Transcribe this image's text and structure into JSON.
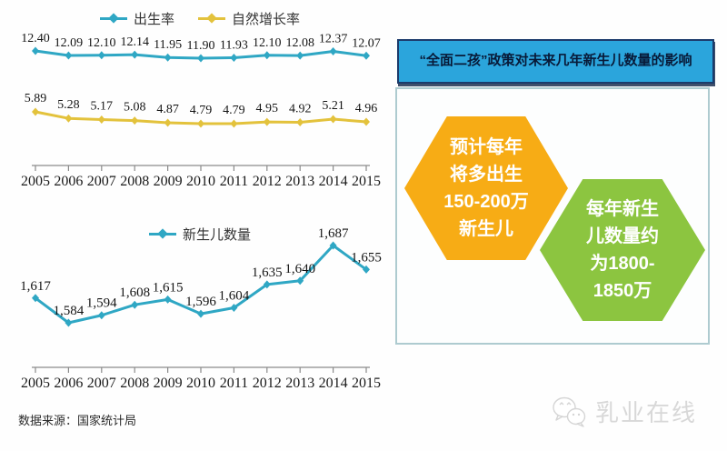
{
  "chart_data": [
    {
      "type": "line",
      "title": "",
      "categories": [
        "2005",
        "2006",
        "2007",
        "2008",
        "2009",
        "2010",
        "2011",
        "2012",
        "2013",
        "2014",
        "2015"
      ],
      "xlabel": "",
      "ylabel": "",
      "legend_position": "top",
      "grid": false,
      "series": [
        {
          "name": "出生率",
          "color": "#2FA7C4",
          "values": [
            12.4,
            12.09,
            12.1,
            12.14,
            11.95,
            11.9,
            11.93,
            12.1,
            12.08,
            12.37,
            12.07
          ],
          "labels": [
            "12.40",
            "12.09",
            "12.10",
            "12.14",
            "11.95",
            "11.90",
            "11.93",
            "12.10",
            "12.08",
            "12.37",
            "12.07"
          ]
        },
        {
          "name": "自然增长率",
          "color": "#E3C23C",
          "values": [
            5.89,
            5.28,
            5.17,
            5.08,
            4.87,
            4.79,
            4.79,
            4.95,
            4.92,
            5.21,
            4.96
          ],
          "labels": [
            "5.89",
            "5.28",
            "5.17",
            "5.08",
            "4.87",
            "4.79",
            "4.79",
            "4.95",
            "4.92",
            "5.21",
            "4.96"
          ]
        }
      ]
    },
    {
      "type": "line",
      "title": "",
      "categories": [
        "2005",
        "2006",
        "2007",
        "2008",
        "2009",
        "2010",
        "2011",
        "2012",
        "2013",
        "2014",
        "2015"
      ],
      "xlabel": "",
      "ylabel": "",
      "legend_position": "top",
      "grid": false,
      "series": [
        {
          "name": "新生儿数量",
          "color": "#2FA7C4",
          "values": [
            1617,
            1584,
            1594,
            1608,
            1615,
            1596,
            1604,
            1635,
            1640,
            1687,
            1655
          ],
          "labels": [
            "1,617",
            "1,584",
            "1,594",
            "1,608",
            "1,615",
            "1,596",
            "1,604",
            "1,635",
            "1,640",
            "1,687",
            "1,655"
          ]
        }
      ]
    }
  ],
  "right_panel": {
    "title": "“全面二孩”政策对未来几年新生儿数量的影响",
    "hex_yellow": "预计每年\n将多出生\n150-200万\n新生儿",
    "hex_green": "每年新生\n儿数量约\n为1800-\n1850万"
  },
  "source": "数据来源：国家统计局",
  "watermark": "乳业在线",
  "colors": {
    "line_teal": "#2FA7C4",
    "line_gold": "#E3C23C",
    "hex_orange": "#F7AC15",
    "hex_green": "#8CC540",
    "header_bg": "#2BA5DC",
    "header_border": "#1C3B6B",
    "header_text": "#081A38",
    "box_border": "#AECBD0",
    "watermark_gray": "#D8D8D8"
  }
}
